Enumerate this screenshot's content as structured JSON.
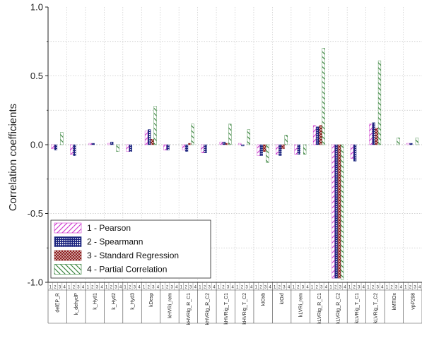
{
  "chart_data": {
    "type": "bar",
    "title": "",
    "xlabel": "",
    "ylabel": "Correlation coefficients",
    "ylim": [
      -1.0,
      1.0
    ],
    "yticks": [
      {
        "value": 1.0,
        "label": "1.0"
      },
      {
        "value": 0.5,
        "label": "0.5"
      },
      {
        "value": 0.0,
        "label": "0.0"
      },
      {
        "value": -0.5,
        "label": "-0.5"
      },
      {
        "value": -1.0,
        "label": "-1.0"
      }
    ],
    "grid": true,
    "legend_position": "bottom-left",
    "position_labels": [
      "1",
      "2",
      "3",
      "4"
    ],
    "categories": [
      "delEP_R",
      "k_dehydP",
      "k_Hyd1",
      "k_Hyd2",
      "k_Hyd3",
      "kDesp",
      "kHVRi_rem",
      "kHVRig_R_C1",
      "kHVRig_R_C2",
      "kHVRig_T_C1",
      "kHVRig_T_C2",
      "kIOxb",
      "kIOxf",
      "kLVRi_rem",
      "kLVRig_R_C1",
      "kLVRig_R_C2",
      "kLVRig_T_C1",
      "kLVRig_T_C2",
      "kMTIOx",
      "vpP298"
    ],
    "series": [
      {
        "name": "1 - Pearson",
        "color": "#cc33cc",
        "pattern": "diag-forward",
        "values": [
          -0.03,
          -0.07,
          0.01,
          0.01,
          -0.05,
          0.1,
          -0.04,
          -0.04,
          -0.06,
          0.02,
          0.01,
          -0.08,
          -0.07,
          -0.07,
          0.14,
          -0.97,
          -0.1,
          0.15,
          0.0,
          0.01
        ]
      },
      {
        "name": "2 - Spearmann",
        "color": "#1a237e",
        "pattern": "grid",
        "values": [
          -0.04,
          -0.08,
          0.01,
          0.02,
          -0.05,
          0.11,
          -0.04,
          -0.05,
          -0.06,
          0.02,
          -0.01,
          -0.08,
          -0.08,
          -0.07,
          0.13,
          -0.97,
          -0.12,
          0.16,
          0.0,
          0.01
        ]
      },
      {
        "name": "3 - Standard Regression",
        "color": "#8b1a1a",
        "pattern": "cross",
        "values": [
          0.0,
          0.0,
          0.0,
          0.0,
          0.0,
          0.04,
          0.0,
          0.01,
          0.0,
          0.01,
          0.0,
          -0.05,
          -0.03,
          0.0,
          0.14,
          -0.97,
          0.0,
          0.12,
          0.0,
          0.0
        ]
      },
      {
        "name": "4 - Partial Correlation",
        "color": "#2e7d32",
        "pattern": "diag-back",
        "values": [
          0.09,
          0.0,
          0.0,
          -0.05,
          0.0,
          0.28,
          0.0,
          0.15,
          0.0,
          0.15,
          0.11,
          -0.13,
          0.07,
          -0.07,
          0.7,
          -0.98,
          0.0,
          0.61,
          0.05,
          0.05
        ]
      }
    ]
  }
}
